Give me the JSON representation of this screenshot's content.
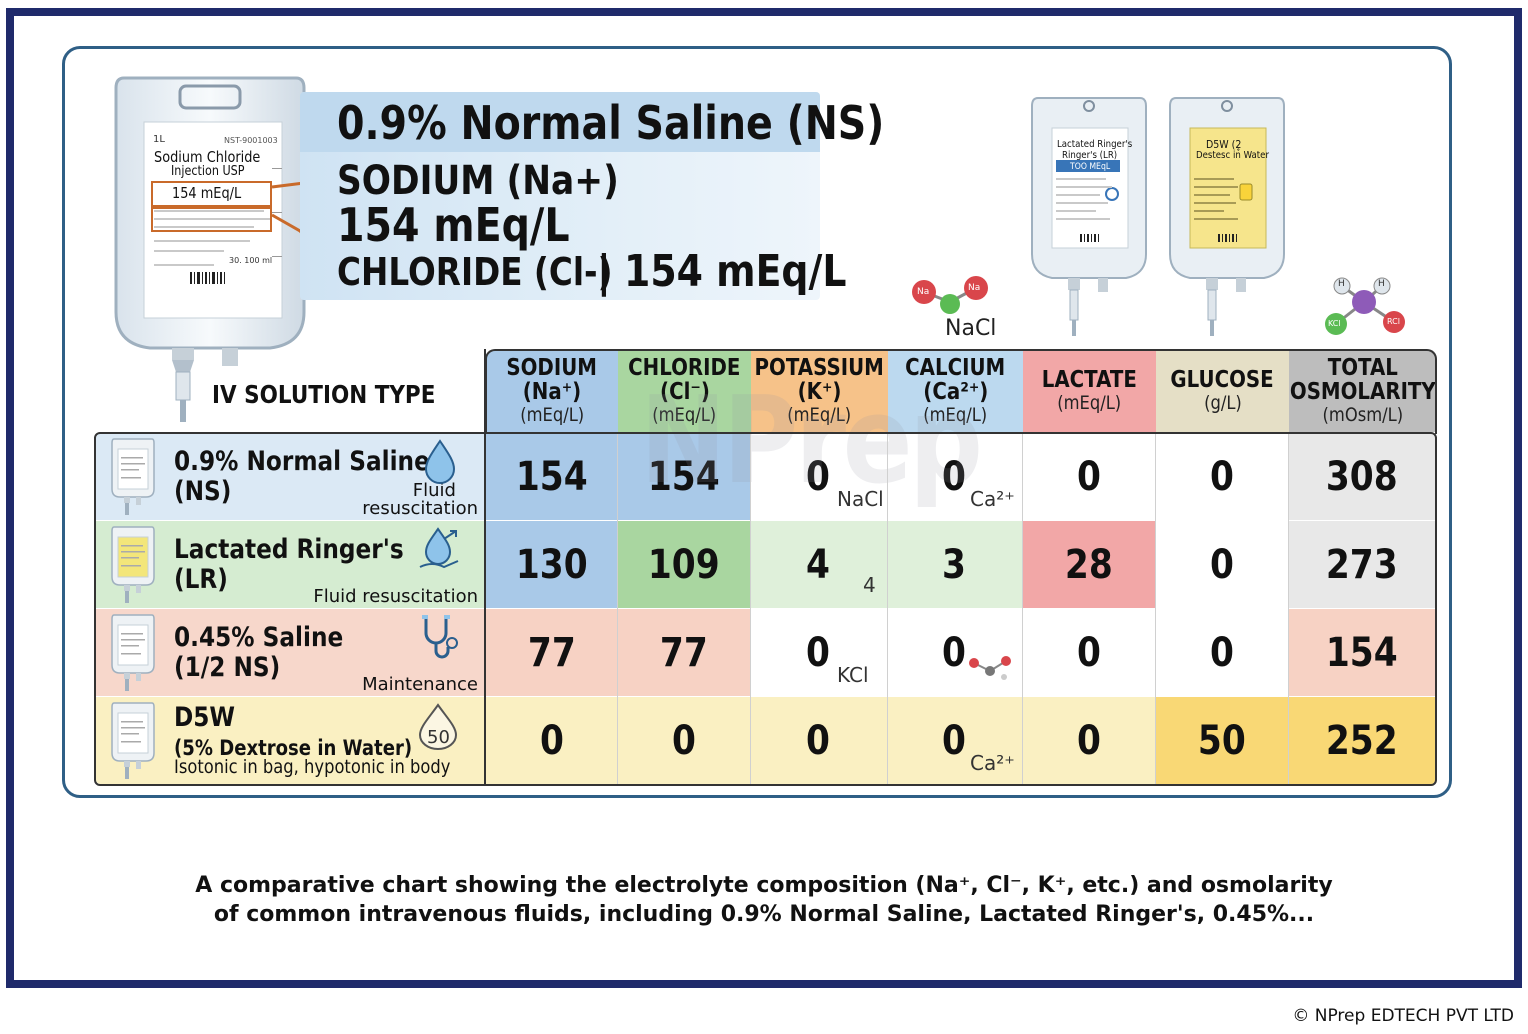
{
  "hero": {
    "bag_label": {
      "volume": "1L",
      "code": "NST-9001003",
      "name_line1": "Sodium Chloride",
      "name_line2": "Injection USP",
      "box": "154 mEq/L",
      "volume_mark": "30. 100 ml"
    },
    "title": "0.9% Normal Saline (NS)",
    "line1": "SODIUM (Na+)",
    "line2": "154 mEq/L",
    "line3": "CHLORIDE (Cl-)",
    "line3_value": "| 154 mEq/L"
  },
  "bag_labels": {
    "lr": {
      "line1": "Lactated Ringer's",
      "line2": "Ringer's (LR)",
      "band": "TOO MEqL"
    },
    "d5w": {
      "line1": "D5W (2̥",
      "line2": "Destesc in Water"
    }
  },
  "molecules": {
    "nacl": {
      "atom1": "Na",
      "atom2": "Na",
      "label": "NaCl"
    },
    "kcl": {
      "top1": "H",
      "top2": "H",
      "left": "KCl",
      "right": "RCl"
    }
  },
  "table_title": "IV SOLUTION TYPE",
  "watermark": "NPrep",
  "columns": [
    {
      "name": "SODIUM",
      "name2": "(Na⁺)",
      "unit": "(mEq/L)",
      "color": "#a9c9e8"
    },
    {
      "name": "CHLORIDE",
      "name2": "(Cl⁻)",
      "unit": "(mEq/L)",
      "color": "#a9d6a0"
    },
    {
      "name": "POTASSIUM",
      "name2": "(K⁺)",
      "unit": "(mEq/L)",
      "color": "#f6c289"
    },
    {
      "name": "CALCIUM",
      "name2": "(Ca²⁺)",
      "unit": "(mEq/L)",
      "color": "#bcd9ef"
    },
    {
      "name": "LACTATE",
      "name2": "",
      "unit": "(mEq/L)",
      "color": "#f2a7a7"
    },
    {
      "name": "GLUCOSE",
      "name2": "",
      "unit": "(g/L)",
      "color": "#e5dfc6"
    },
    {
      "name": "TOTAL",
      "name2": "OSMOLARITY",
      "unit": "(mOsm/L)",
      "color": "#bdbdbd"
    }
  ],
  "rows": [
    {
      "name1": "0.9% Normal Saline",
      "name2": "(NS)",
      "tag1": "Fluid",
      "tag2": "resuscitation",
      "icon": "water-drop-icon",
      "bg": "#dbe9f5",
      "bag_color": "#ffffff"
    },
    {
      "name1": "Lactated Ringer's",
      "name2": "(LR)",
      "tag1": "",
      "tag2": "Fluid resuscitation",
      "icon": "hand-drop-icon",
      "bg": "#d5ecd1",
      "bag_color": "#f3e67a"
    },
    {
      "name1": "0.45% Saline",
      "name2": "(1/2 NS)",
      "tag1": "",
      "tag2": "Maintenance",
      "icon": "stethoscope-icon",
      "bg": "#f7d7cb",
      "bag_color": "#ffffff"
    },
    {
      "name1": "D5W",
      "name2": "(5% Dextrose in Water)",
      "tag1": "",
      "tag2": "Isotonic in bag, hypotonic in body",
      "icon": "drop-50-icon",
      "icon_text": "50",
      "bg": "#faf0c2",
      "bag_color": "#ffffff"
    }
  ],
  "cell_notes": {
    "r0c2": "NaCl",
    "r0c3": "Ca²⁺",
    "r1c2": "4",
    "r2c2": "KCl",
    "r3c3": "Ca²⁺"
  },
  "cell_colors": [
    [
      "#a9c9e8",
      "#a9c9e8",
      "#ffffff",
      "#ffffff",
      "#ffffff",
      "#ffffff",
      "#e8e8e8"
    ],
    [
      "#a9c9e8",
      "#a9d6a0",
      "#dff0da",
      "#dff0da",
      "#f2a7a7",
      "#ffffff",
      "#e8e8e8"
    ],
    [
      "#f7d2c4",
      "#f7d2c4",
      "#ffffff",
      "#ffffff",
      "#ffffff",
      "#ffffff",
      "#f7d2c4"
    ],
    [
      "#faf0c2",
      "#faf0c2",
      "#faf0c2",
      "#faf0c2",
      "#faf0c2",
      "#f9d875",
      "#f9d875"
    ]
  ],
  "chart_data": {
    "type": "table",
    "title": "",
    "categories": [
      "0.9% Normal Saline (NS)",
      "Lactated Ringer's (LR)",
      "0.45% Saline (1/2 NS)",
      "D5W (5% Dextrose in Water)"
    ],
    "series": [
      {
        "name": "SODIUM (Na⁺) (mEq/L)",
        "values": [
          154,
          130,
          77,
          0
        ]
      },
      {
        "name": "CHLORIDE (Cl⁻) (mEq/L)",
        "values": [
          154,
          109,
          77,
          0
        ]
      },
      {
        "name": "POTASSIUM (K⁺) (mEq/L)",
        "values": [
          0,
          4,
          0,
          0
        ]
      },
      {
        "name": "CALCIUM (Ca²⁺) (mEq/L)",
        "values": [
          0,
          3,
          0,
          0
        ]
      },
      {
        "name": "LACTATE (mEq/L)",
        "values": [
          0,
          28,
          0,
          0
        ]
      },
      {
        "name": "GLUCOSE (g/L)",
        "values": [
          0,
          0,
          0,
          50
        ]
      },
      {
        "name": "TOTAL OSMOLARITY (mOsm/L)",
        "values": [
          308,
          273,
          154,
          252
        ]
      }
    ]
  },
  "caption_line1": "A comparative chart showing the electrolyte composition (Na⁺, Cl⁻, K⁺, etc.) and osmolarity",
  "caption_line2": "of common intravenous fluids, including 0.9% Normal Saline, Lactated Ringer's, 0.45%...",
  "copyright": "© NPrep EDTECH PVT LTD"
}
